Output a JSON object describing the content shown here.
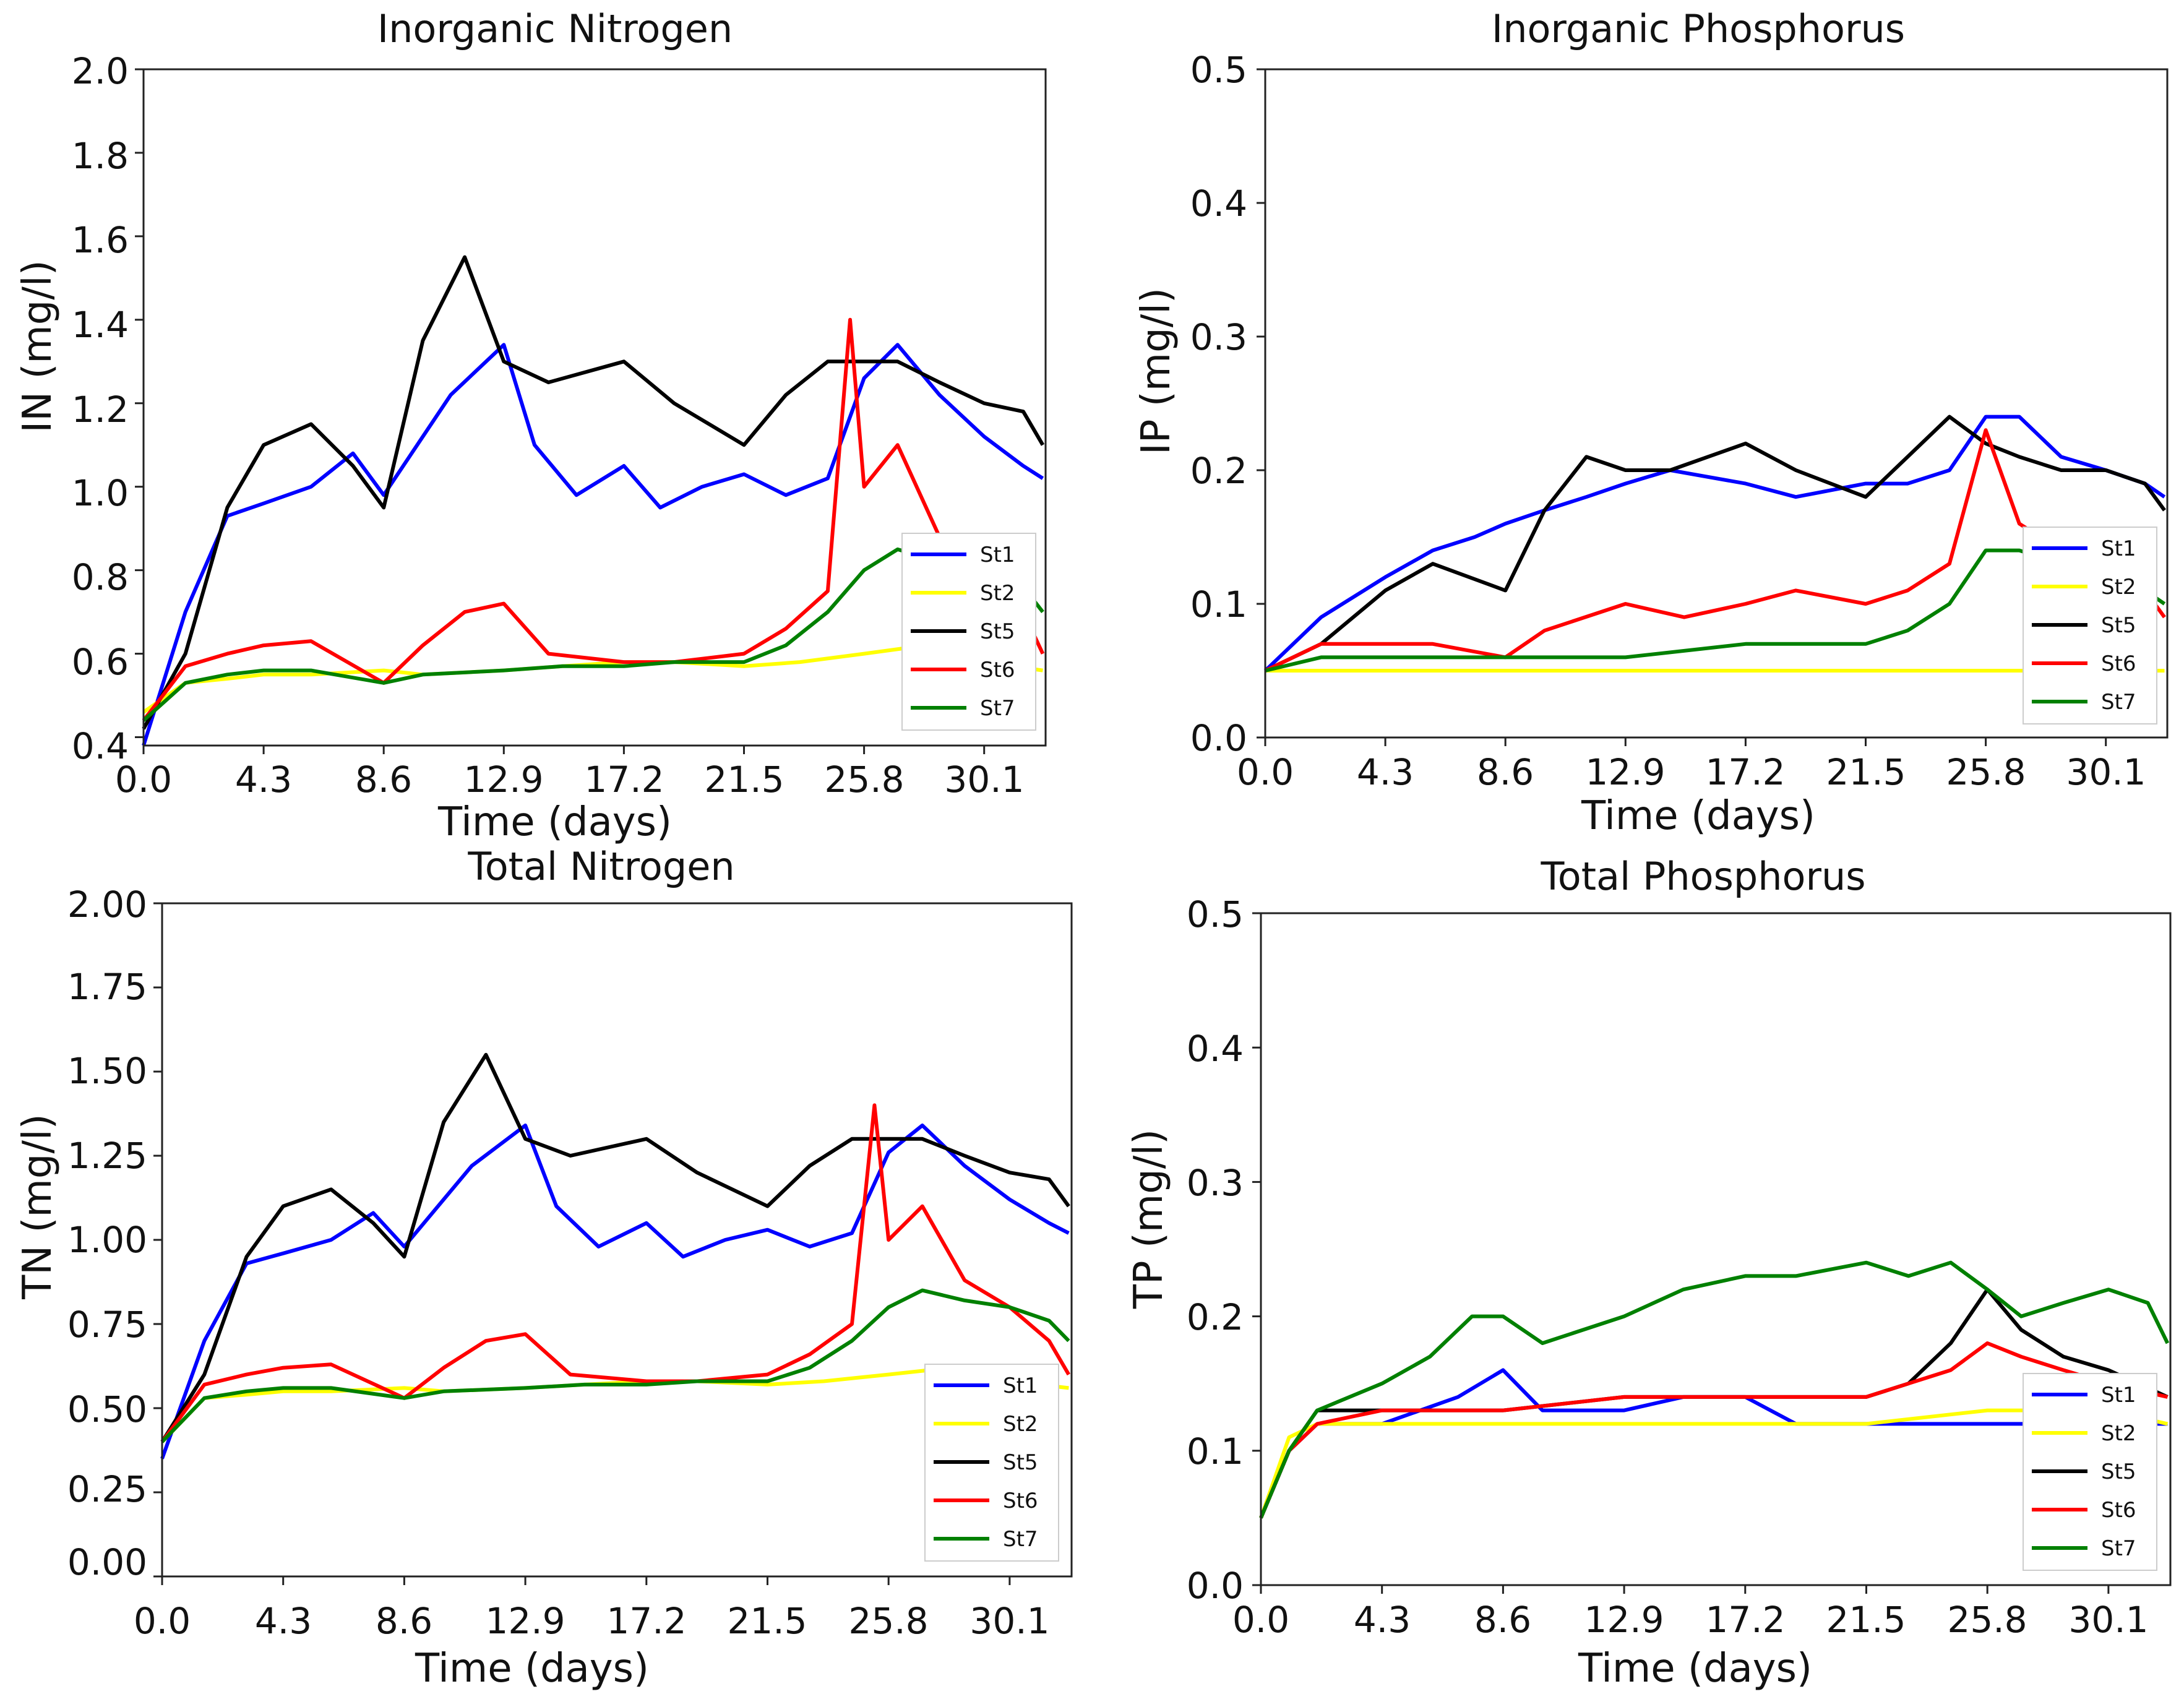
{
  "colors": {
    "St1": "#0000ff",
    "St2": "#ffff00",
    "St5": "#000000",
    "St6": "#ff0000",
    "St7": "#008000"
  },
  "chart_data": [
    {
      "type": "line",
      "title": "Inorganic Nitrogen",
      "xlabel": "Time (days)",
      "ylabel": "IN (mg/l)",
      "xlim": [
        0,
        32.3
      ],
      "ylim": [
        0.38,
        2.0
      ],
      "x_ticks": [
        "0.0",
        "4.3",
        "8.6",
        "12.9",
        "17.2",
        "21.5",
        "25.8",
        "30.1"
      ],
      "y_ticks": [
        "0.4",
        "0.6",
        "0.8",
        "1.0",
        "1.2",
        "1.4",
        "1.6",
        "1.8",
        "2.0"
      ],
      "legend": [
        "St1",
        "St2",
        "St5",
        "St6",
        "St7"
      ],
      "legend_position": "lower-right",
      "series": [
        {
          "name": "St1",
          "x": [
            0,
            1.5,
            3,
            4.3,
            6,
            7.5,
            8.6,
            10,
            11,
            12.9,
            14,
            15.5,
            17.2,
            18.5,
            20,
            21.5,
            23,
            24.5,
            25.8,
            27,
            28.5,
            30.1,
            31.5,
            32.2
          ],
          "values": [
            0.38,
            0.7,
            0.93,
            0.96,
            1.0,
            1.08,
            0.98,
            1.12,
            1.22,
            1.34,
            1.1,
            0.98,
            1.05,
            0.95,
            1.0,
            1.03,
            0.98,
            1.02,
            1.26,
            1.34,
            1.22,
            1.12,
            1.05,
            1.02
          ]
        },
        {
          "name": "St2",
          "x": [
            0,
            1.5,
            3,
            4.3,
            6,
            8.6,
            10,
            12.9,
            15,
            17.2,
            19,
            21.5,
            23.5,
            25.8,
            28,
            30.1,
            32.2
          ],
          "values": [
            0.46,
            0.53,
            0.54,
            0.55,
            0.55,
            0.56,
            0.55,
            0.56,
            0.57,
            0.58,
            0.58,
            0.57,
            0.58,
            0.6,
            0.62,
            0.58,
            0.56
          ]
        },
        {
          "name": "St5",
          "x": [
            0,
            1.5,
            3,
            4.3,
            6,
            7.5,
            8.6,
            10,
            11.5,
            12.9,
            14.5,
            17.2,
            19,
            21.5,
            23,
            24.5,
            25.8,
            27,
            28.5,
            30.1,
            31.5,
            32.2
          ],
          "values": [
            0.42,
            0.6,
            0.95,
            1.1,
            1.15,
            1.05,
            0.95,
            1.35,
            1.55,
            1.3,
            1.25,
            1.3,
            1.2,
            1.1,
            1.22,
            1.3,
            1.3,
            1.3,
            1.25,
            1.2,
            1.18,
            1.1
          ]
        },
        {
          "name": "St6",
          "x": [
            0,
            1.5,
            3,
            4.3,
            6,
            8.6,
            10,
            11.5,
            12.9,
            14.5,
            17.2,
            19,
            21.5,
            23,
            24.5,
            25.3,
            25.8,
            27,
            28.5,
            30.1,
            31.5,
            32.2
          ],
          "values": [
            0.44,
            0.57,
            0.6,
            0.62,
            0.63,
            0.53,
            0.62,
            0.7,
            0.72,
            0.6,
            0.58,
            0.58,
            0.6,
            0.66,
            0.75,
            1.4,
            1.0,
            1.1,
            0.88,
            0.8,
            0.7,
            0.6
          ]
        },
        {
          "name": "St7",
          "x": [
            0,
            1.5,
            3,
            4.3,
            6,
            8.6,
            10,
            12.9,
            15,
            17.2,
            19,
            21.5,
            23,
            24.5,
            25.8,
            27,
            28.5,
            30.1,
            31.5,
            32.2
          ],
          "values": [
            0.44,
            0.53,
            0.55,
            0.56,
            0.56,
            0.53,
            0.55,
            0.56,
            0.57,
            0.57,
            0.58,
            0.58,
            0.62,
            0.7,
            0.8,
            0.85,
            0.82,
            0.8,
            0.76,
            0.7
          ]
        }
      ]
    },
    {
      "type": "line",
      "title": "Inorganic Phosphorus",
      "xlabel": "Time (days)",
      "ylabel": "IP (mg/l)",
      "xlim": [
        0,
        32.3
      ],
      "ylim": [
        0.0,
        0.5
      ],
      "x_ticks": [
        "0.0",
        "4.3",
        "8.6",
        "12.9",
        "17.2",
        "21.5",
        "25.8",
        "30.1"
      ],
      "y_ticks": [
        "0.0",
        "0.1",
        "0.2",
        "0.3",
        "0.4",
        "0.5"
      ],
      "legend": [
        "St1",
        "St2",
        "St5",
        "St6",
        "St7"
      ],
      "legend_position": "lower-right",
      "series": [
        {
          "name": "St1",
          "x": [
            0,
            2,
            4.3,
            6,
            7.5,
            8.6,
            10,
            11.5,
            12.9,
            14.5,
            17.2,
            19,
            21.5,
            23,
            24.5,
            25.8,
            27,
            28.5,
            30.1,
            31.5,
            32.2
          ],
          "values": [
            0.05,
            0.09,
            0.12,
            0.14,
            0.15,
            0.16,
            0.17,
            0.18,
            0.19,
            0.2,
            0.19,
            0.18,
            0.19,
            0.19,
            0.2,
            0.24,
            0.24,
            0.21,
            0.2,
            0.19,
            0.18
          ]
        },
        {
          "name": "St2",
          "x": [
            0,
            2,
            4.3,
            8.6,
            12.9,
            17.2,
            21.5,
            25.8,
            30.1,
            32.2
          ],
          "values": [
            0.05,
            0.05,
            0.05,
            0.05,
            0.05,
            0.05,
            0.05,
            0.05,
            0.05,
            0.05
          ]
        },
        {
          "name": "St5",
          "x": [
            0,
            2,
            4.3,
            6,
            8.6,
            10,
            11.5,
            12.9,
            14.5,
            17.2,
            19,
            21.5,
            23,
            24.5,
            25.8,
            27,
            28.5,
            30.1,
            31.5,
            32.2
          ],
          "values": [
            0.05,
            0.07,
            0.11,
            0.13,
            0.11,
            0.17,
            0.21,
            0.2,
            0.2,
            0.22,
            0.2,
            0.18,
            0.21,
            0.24,
            0.22,
            0.21,
            0.2,
            0.2,
            0.19,
            0.17
          ]
        },
        {
          "name": "St6",
          "x": [
            0,
            2,
            4.3,
            6,
            8.6,
            10,
            12.9,
            15,
            17.2,
            19,
            21.5,
            23,
            24.5,
            25.8,
            27,
            28.5,
            30.1,
            31.5,
            32.2
          ],
          "values": [
            0.05,
            0.07,
            0.07,
            0.07,
            0.06,
            0.08,
            0.1,
            0.09,
            0.1,
            0.11,
            0.1,
            0.11,
            0.13,
            0.23,
            0.16,
            0.14,
            0.12,
            0.11,
            0.09
          ]
        },
        {
          "name": "St7",
          "x": [
            0,
            2,
            4.3,
            8.6,
            12.9,
            17.2,
            21.5,
            23,
            24.5,
            25.8,
            27,
            28.5,
            30.1,
            31.5,
            32.2
          ],
          "values": [
            0.05,
            0.06,
            0.06,
            0.06,
            0.06,
            0.07,
            0.07,
            0.08,
            0.1,
            0.14,
            0.14,
            0.13,
            0.12,
            0.11,
            0.1
          ]
        }
      ]
    },
    {
      "type": "line",
      "title": "Total Nitrogen",
      "xlabel": "Time (days)",
      "ylabel": "TN (mg/l)",
      "xlim": [
        0,
        32.3
      ],
      "ylim": [
        0.0,
        2.0
      ],
      "x_ticks": [
        "0.0",
        "4.3",
        "8.6",
        "12.9",
        "17.2",
        "21.5",
        "25.8",
        "30.1"
      ],
      "y_ticks": [
        "0.00",
        "0.25",
        "0.50",
        "0.75",
        "1.00",
        "1.25",
        "1.50",
        "1.75",
        "2.00"
      ],
      "legend": [
        "St1",
        "St2",
        "St5",
        "St6",
        "St7"
      ],
      "legend_position": "lower-right",
      "series": [
        {
          "name": "St1",
          "x": [
            0,
            1.5,
            3,
            4.3,
            6,
            7.5,
            8.6,
            10,
            11,
            12.9,
            14,
            15.5,
            17.2,
            18.5,
            20,
            21.5,
            23,
            24.5,
            25.8,
            27,
            28.5,
            30.1,
            31.5,
            32.2
          ],
          "values": [
            0.35,
            0.7,
            0.93,
            0.96,
            1.0,
            1.08,
            0.98,
            1.12,
            1.22,
            1.34,
            1.1,
            0.98,
            1.05,
            0.95,
            1.0,
            1.03,
            0.98,
            1.02,
            1.26,
            1.34,
            1.22,
            1.12,
            1.05,
            1.02
          ]
        },
        {
          "name": "St2",
          "x": [
            0,
            1.5,
            3,
            4.3,
            6,
            8.6,
            10,
            12.9,
            15,
            17.2,
            19,
            21.5,
            23.5,
            25.8,
            28,
            30.1,
            32.2
          ],
          "values": [
            0.4,
            0.53,
            0.54,
            0.55,
            0.55,
            0.56,
            0.55,
            0.56,
            0.57,
            0.58,
            0.58,
            0.57,
            0.58,
            0.6,
            0.62,
            0.58,
            0.56
          ]
        },
        {
          "name": "St5",
          "x": [
            0,
            1.5,
            3,
            4.3,
            6,
            7.5,
            8.6,
            10,
            11.5,
            12.9,
            14.5,
            17.2,
            19,
            21.5,
            23,
            24.5,
            25.8,
            27,
            28.5,
            30.1,
            31.5,
            32.2
          ],
          "values": [
            0.4,
            0.6,
            0.95,
            1.1,
            1.15,
            1.05,
            0.95,
            1.35,
            1.55,
            1.3,
            1.25,
            1.3,
            1.2,
            1.1,
            1.22,
            1.3,
            1.3,
            1.3,
            1.25,
            1.2,
            1.18,
            1.1
          ]
        },
        {
          "name": "St6",
          "x": [
            0,
            1.5,
            3,
            4.3,
            6,
            8.6,
            10,
            11.5,
            12.9,
            14.5,
            17.2,
            19,
            21.5,
            23,
            24.5,
            25.3,
            25.8,
            27,
            28.5,
            30.1,
            31.5,
            32.2
          ],
          "values": [
            0.4,
            0.57,
            0.6,
            0.62,
            0.63,
            0.53,
            0.62,
            0.7,
            0.72,
            0.6,
            0.58,
            0.58,
            0.6,
            0.66,
            0.75,
            1.4,
            1.0,
            1.1,
            0.88,
            0.8,
            0.7,
            0.6
          ]
        },
        {
          "name": "St7",
          "x": [
            0,
            1.5,
            3,
            4.3,
            6,
            8.6,
            10,
            12.9,
            15,
            17.2,
            19,
            21.5,
            23,
            24.5,
            25.8,
            27,
            28.5,
            30.1,
            31.5,
            32.2
          ],
          "values": [
            0.4,
            0.53,
            0.55,
            0.56,
            0.56,
            0.53,
            0.55,
            0.56,
            0.57,
            0.57,
            0.58,
            0.58,
            0.62,
            0.7,
            0.8,
            0.85,
            0.82,
            0.8,
            0.76,
            0.7
          ]
        }
      ]
    },
    {
      "type": "line",
      "title": "Total Phosphorus",
      "xlabel": "Time (days)",
      "ylabel": "TP (mg/l)",
      "xlim": [
        0,
        32.3
      ],
      "ylim": [
        0.0,
        0.5
      ],
      "x_ticks": [
        "0.0",
        "4.3",
        "8.6",
        "12.9",
        "17.2",
        "21.5",
        "25.8",
        "30.1"
      ],
      "y_ticks": [
        "0.0",
        "0.1",
        "0.2",
        "0.3",
        "0.4",
        "0.5"
      ],
      "legend": [
        "St1",
        "St2",
        "St5",
        "St6",
        "St7"
      ],
      "legend_position": "lower-right",
      "series": [
        {
          "name": "St1",
          "x": [
            0,
            1,
            2,
            4.3,
            7,
            8.6,
            10,
            12.9,
            15,
            17.2,
            19,
            21.5,
            23,
            25.8,
            28,
            30.1,
            32.2
          ],
          "values": [
            0.05,
            0.1,
            0.12,
            0.12,
            0.14,
            0.16,
            0.13,
            0.13,
            0.14,
            0.14,
            0.12,
            0.12,
            0.12,
            0.12,
            0.12,
            0.12,
            0.12
          ]
        },
        {
          "name": "St2",
          "x": [
            0,
            1,
            2,
            4.3,
            8.6,
            12.9,
            17.2,
            21.5,
            25.8,
            30.1,
            32.2
          ],
          "values": [
            0.05,
            0.11,
            0.12,
            0.12,
            0.12,
            0.12,
            0.12,
            0.12,
            0.13,
            0.13,
            0.12
          ]
        },
        {
          "name": "St5",
          "x": [
            0,
            1,
            2,
            4.3,
            8.6,
            12.9,
            17.2,
            21.5,
            23,
            24.5,
            25.8,
            27,
            28.5,
            30.1,
            32.2
          ],
          "values": [
            0.05,
            0.1,
            0.13,
            0.13,
            0.13,
            0.14,
            0.14,
            0.14,
            0.15,
            0.18,
            0.22,
            0.19,
            0.17,
            0.16,
            0.14
          ]
        },
        {
          "name": "St6",
          "x": [
            0,
            1,
            2,
            4.3,
            8.6,
            12.9,
            17.2,
            21.5,
            23,
            24.5,
            25.8,
            27,
            28.5,
            30.1,
            32.2
          ],
          "values": [
            0.05,
            0.1,
            0.12,
            0.13,
            0.13,
            0.14,
            0.14,
            0.14,
            0.15,
            0.16,
            0.18,
            0.17,
            0.16,
            0.15,
            0.14
          ]
        },
        {
          "name": "St7",
          "x": [
            0,
            1,
            2,
            4.3,
            6,
            7.5,
            8.6,
            10,
            12.9,
            15,
            17.2,
            19,
            21.5,
            23,
            24.5,
            25.8,
            27,
            28.5,
            30.1,
            31.5,
            32.2
          ],
          "values": [
            0.05,
            0.1,
            0.13,
            0.15,
            0.17,
            0.2,
            0.2,
            0.18,
            0.2,
            0.22,
            0.23,
            0.23,
            0.24,
            0.23,
            0.24,
            0.22,
            0.2,
            0.21,
            0.22,
            0.21,
            0.18
          ]
        }
      ]
    }
  ]
}
